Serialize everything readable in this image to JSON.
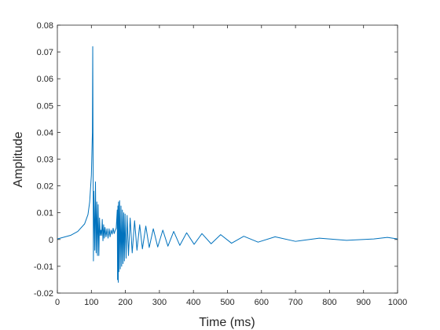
{
  "chart_data": {
    "type": "line",
    "title": "",
    "xlabel": "Time (ms)",
    "ylabel": "Amplitude",
    "xlim": [
      0,
      1000
    ],
    "ylim": [
      -0.02,
      0.08
    ],
    "grid": false,
    "legend": "none",
    "x_ticks": [
      0,
      100,
      200,
      300,
      400,
      500,
      600,
      700,
      800,
      900,
      1000
    ],
    "x_tick_labels": [
      "0",
      "100",
      "200",
      "300",
      "400",
      "500",
      "600",
      "700",
      "800",
      "900",
      "1000"
    ],
    "y_ticks": [
      -0.02,
      -0.01,
      0,
      0.01,
      0.02,
      0.03,
      0.04,
      0.05,
      0.06,
      0.07,
      0.08
    ],
    "y_tick_labels": [
      "-0.02",
      "-0.01",
      "0",
      "0.01",
      "0.02",
      "0.03",
      "0.04",
      "0.05",
      "0.06",
      "0.07",
      "0.08"
    ],
    "series": [
      {
        "color": "#0072bd",
        "x": [
          0,
          20,
          40,
          60,
          80,
          90,
          95,
          100,
          103,
          104,
          105,
          106,
          107,
          108,
          110,
          112,
          114,
          116,
          118,
          120,
          122,
          124,
          126,
          128,
          130,
          132,
          134,
          136,
          138,
          140,
          143,
          146,
          149,
          152,
          155,
          158,
          161,
          164,
          167,
          170,
          173,
          176,
          177,
          178,
          179,
          180,
          181,
          183,
          185,
          187,
          189,
          191,
          193,
          195,
          197,
          199,
          202,
          205,
          209,
          214,
          220,
          227,
          234,
          242,
          250,
          260,
          270,
          282,
          295,
          310,
          325,
          342,
          360,
          380,
          402,
          425,
          452,
          480,
          512,
          548,
          590,
          640,
          700,
          770,
          850,
          930,
          970,
          1000
        ],
        "y": [
          0.0002,
          0.0009,
          0.0016,
          0.003,
          0.0058,
          0.0093,
          0.014,
          0.024,
          0.04,
          0.072,
          0.03,
          -0.008,
          0.018,
          0.012,
          -0.004,
          0.0215,
          -0.005,
          0.014,
          -0.006,
          0.013,
          -0.006,
          0.008,
          0.0015,
          0.0035,
          0.0015,
          0.0075,
          -0.0005,
          0.0055,
          0.0005,
          0.0045,
          0.001,
          0.004,
          0.0005,
          0.004,
          0.001,
          0.0035,
          0.002,
          0.0042,
          0.0022,
          0.0034,
          0.0042,
          0.011,
          -0.015,
          0.0125,
          -0.016,
          0.014,
          -0.012,
          0.0145,
          -0.011,
          0.0125,
          -0.01,
          0.011,
          -0.009,
          0.01,
          -0.008,
          0.0095,
          -0.007,
          0.009,
          -0.006,
          0.008,
          -0.005,
          0.007,
          -0.004,
          0.0055,
          -0.0035,
          0.005,
          -0.003,
          0.004,
          -0.0028,
          0.0035,
          -0.0025,
          0.003,
          -0.0022,
          0.0025,
          -0.0018,
          0.0022,
          -0.0016,
          0.0018,
          -0.0014,
          0.0012,
          -0.001,
          0.001,
          -0.0007,
          0.0005,
          -0.0003,
          0.0002,
          0.0008,
          0.0002
        ]
      }
    ]
  }
}
